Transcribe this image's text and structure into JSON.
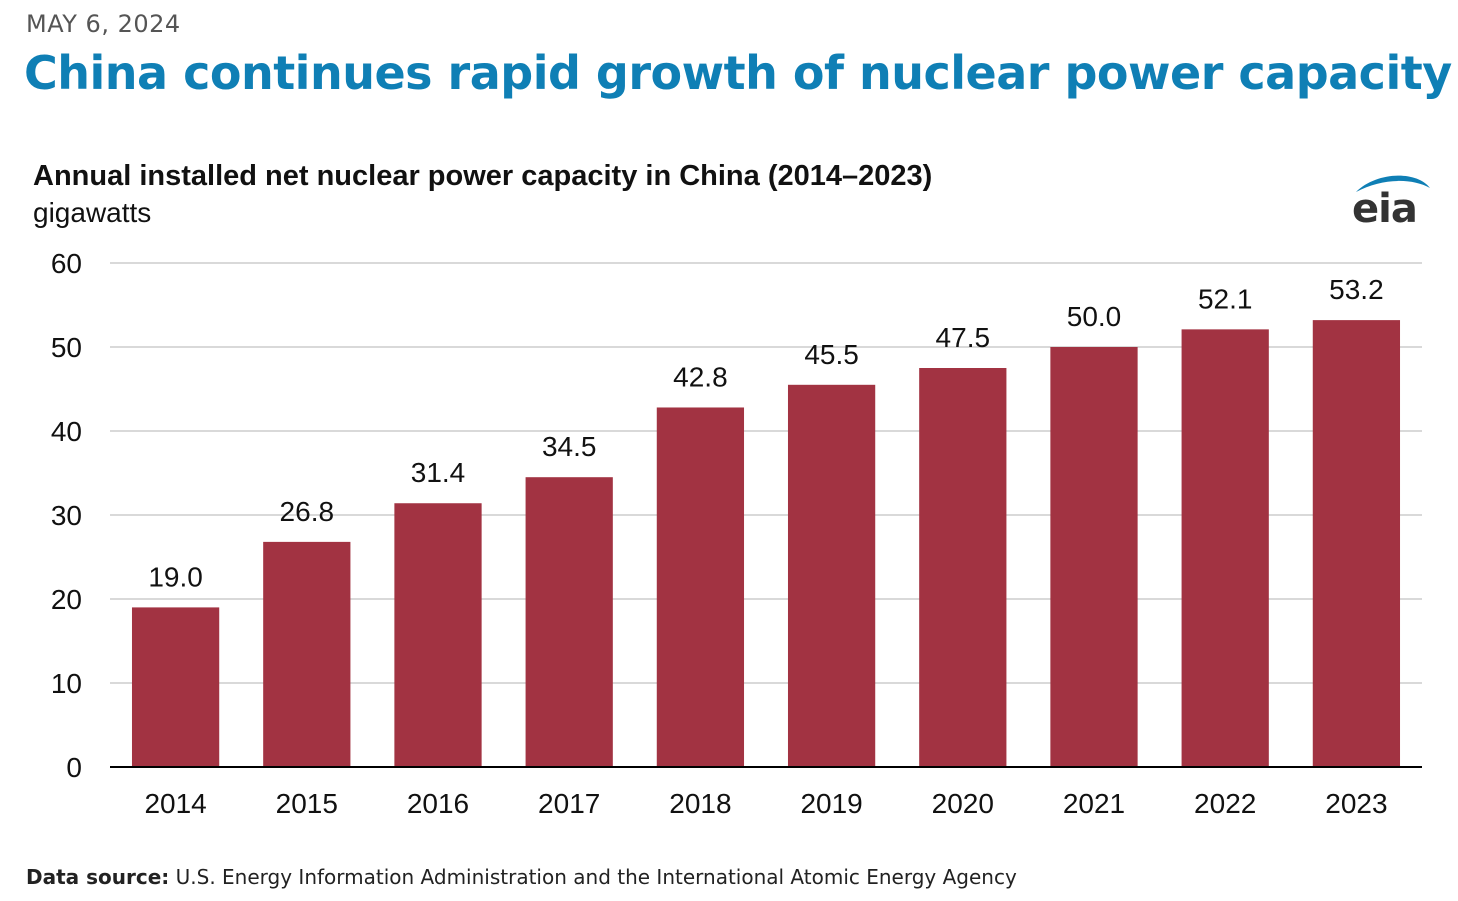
{
  "header": {
    "date": "MAY 6, 2024",
    "headline": "China continues rapid growth of nuclear power capacity"
  },
  "logo": {
    "text": "eia",
    "color": "#0f7fb5"
  },
  "chart_data": {
    "type": "bar",
    "title": "Annual installed net nuclear power capacity in China (2014–2023)",
    "ylabel": "gigawatts",
    "categories": [
      "2014",
      "2015",
      "2016",
      "2017",
      "2018",
      "2019",
      "2020",
      "2021",
      "2022",
      "2023"
    ],
    "values": [
      19.0,
      26.8,
      31.4,
      34.5,
      42.8,
      45.5,
      47.5,
      50.0,
      52.1,
      53.2
    ],
    "data_labels": [
      "19.0",
      "26.8",
      "31.4",
      "34.5",
      "42.8",
      "45.5",
      "47.5",
      "50.0",
      "52.1",
      "53.2"
    ],
    "ylim": [
      0,
      60
    ],
    "yticks": [
      "0",
      "10",
      "20",
      "30",
      "40",
      "50",
      "60"
    ],
    "grid": true,
    "bar_color": "#a23342",
    "grid_color": "#d9d9d9",
    "axis_color": "#000000"
  },
  "footer": {
    "source_label": "Data source:",
    "source_text": "U.S. Energy Information Administration and the International Atomic Energy Agency"
  }
}
